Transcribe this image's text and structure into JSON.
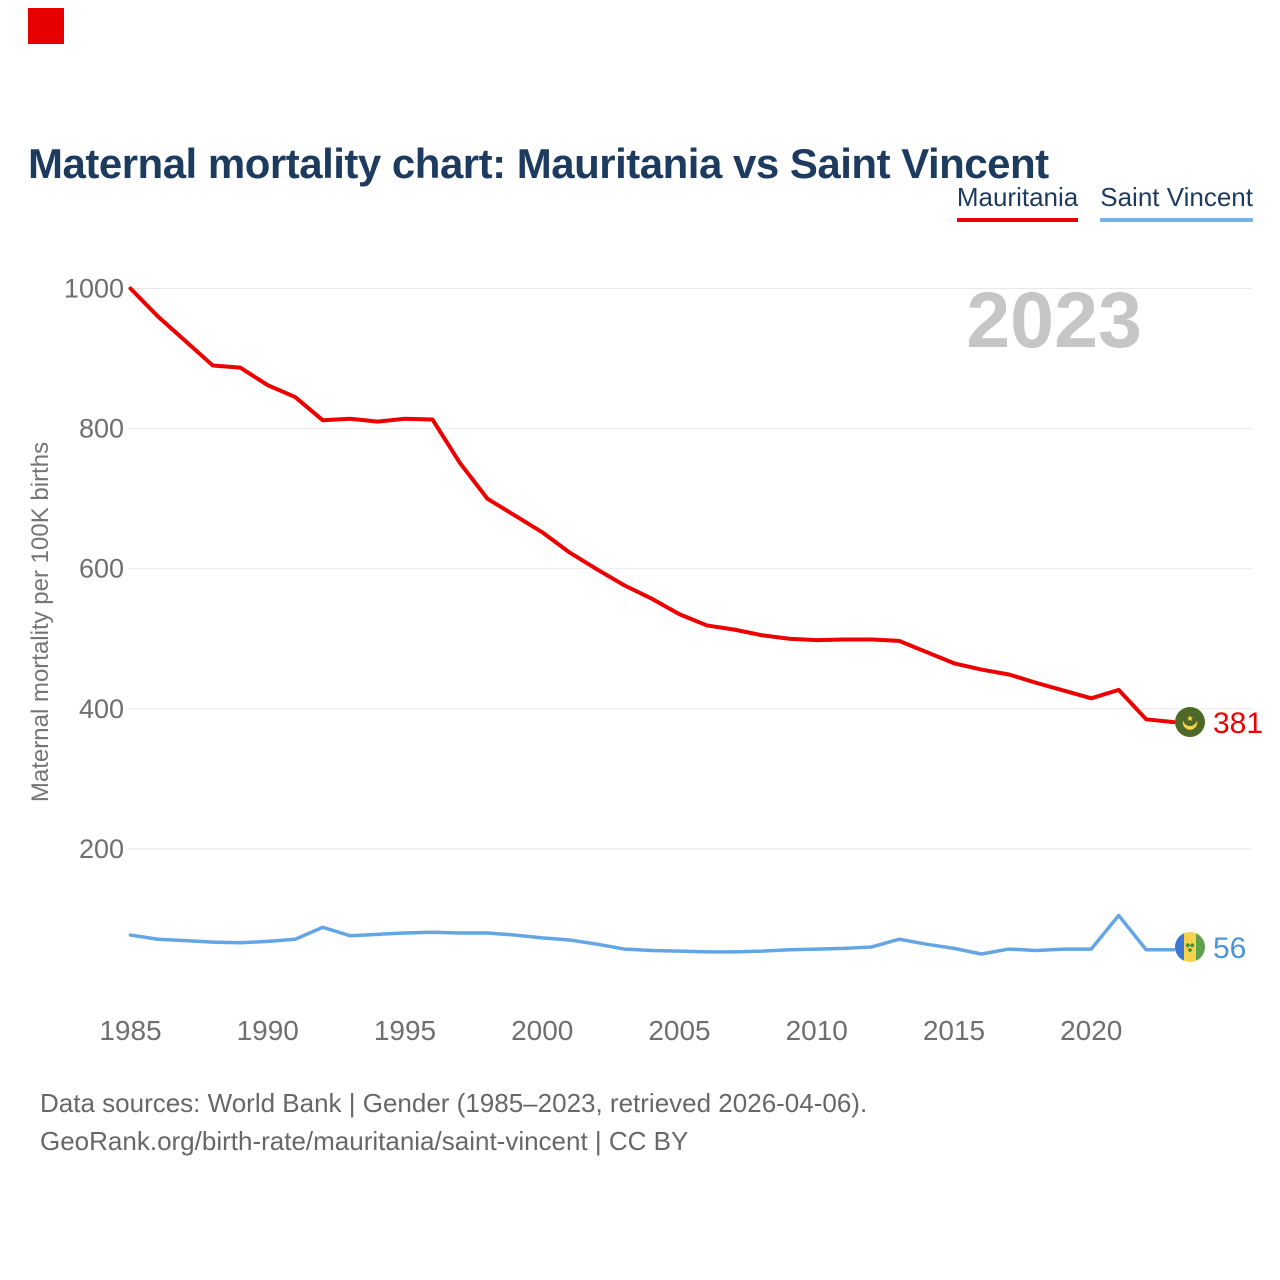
{
  "header": {
    "title": "Maternal mortality chart: Mauritania vs Saint Vincent",
    "legend": [
      {
        "label": "Mauritania",
        "color": "#ee0000"
      },
      {
        "label": "Saint Vincent",
        "color": "#74b2ea"
      }
    ]
  },
  "chart_data": {
    "type": "line",
    "title": "Maternal mortality chart: Mauritania vs Saint Vincent",
    "ylabel": "Maternal mortality per 100K births",
    "xlabel": "",
    "ylim": [
      0,
      1000
    ],
    "yticks": [
      200,
      400,
      600,
      800,
      1000
    ],
    "xticks": [
      1985,
      1990,
      1995,
      2000,
      2005,
      2010,
      2015,
      2020
    ],
    "grid": true,
    "legend_position": "top-right",
    "watermark": "2023",
    "x": [
      1985,
      1986,
      1987,
      1988,
      1989,
      1990,
      1991,
      1992,
      1993,
      1994,
      1995,
      1996,
      1997,
      1998,
      1999,
      2000,
      2001,
      2002,
      2003,
      2004,
      2005,
      2006,
      2007,
      2008,
      2009,
      2010,
      2011,
      2012,
      2013,
      2014,
      2015,
      2016,
      2017,
      2018,
      2019,
      2020,
      2021,
      2022,
      2023
    ],
    "series": [
      {
        "name": "Mauritania",
        "color": "#ee0000",
        "end_label": "381",
        "flag_icon": "mauritania-flag-icon",
        "values": [
          1000,
          960,
          925,
          890,
          887,
          862,
          845,
          812,
          814,
          810,
          814,
          813,
          751,
          700,
          676,
          652,
          623,
          599,
          576,
          557,
          535,
          519,
          513,
          505,
          500,
          498,
          499,
          499,
          497,
          481,
          465,
          456,
          449,
          437,
          426,
          415,
          427,
          385,
          381
        ]
      },
      {
        "name": "Saint Vincent",
        "color": "#64a5e4",
        "end_label": "56",
        "flag_icon": "saint-vincent-flag-icon",
        "values": [
          77,
          71,
          69,
          67,
          66,
          68,
          71,
          88,
          76,
          78,
          80,
          81,
          80,
          80,
          77,
          73,
          70,
          64,
          57,
          55,
          54,
          53,
          53,
          54,
          56,
          57,
          58,
          60,
          71,
          64,
          58,
          50,
          57,
          55,
          57,
          57,
          105,
          56,
          56
        ]
      }
    ]
  },
  "footer": {
    "line1": "Data sources: World Bank | Gender (1985–2023, retrieved 2026-04-06).",
    "line2": "GeoRank.org/birth-rate/mauritania/saint-vincent | CC BY"
  }
}
